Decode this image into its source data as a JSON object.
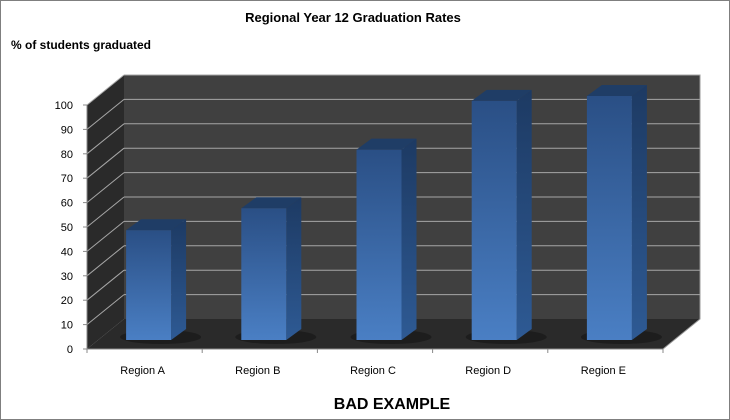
{
  "chart_data": {
    "type": "bar",
    "title": "Regional Year 12 Graduation Rates",
    "ylabel": "% of students graduated",
    "xlabel": "",
    "categories": [
      "Region A",
      "Region B",
      "Region C",
      "Region D",
      "Region E"
    ],
    "values": [
      45,
      54,
      78,
      98,
      100
    ],
    "ylim": [
      0,
      100
    ],
    "yticks": [
      0,
      10,
      20,
      30,
      40,
      50,
      60,
      70,
      80,
      90,
      100
    ],
    "grid": true,
    "style": "3d",
    "colors": {
      "bar": "#3f6fb0",
      "bar_top": "#1f3d66",
      "bar_side": "#24487a",
      "wall": "#404040",
      "side_wall": "#2a2a2a",
      "floor": "#2a2a2a",
      "grid": "#a6a6a6"
    }
  },
  "caption": "BAD EXAMPLE"
}
